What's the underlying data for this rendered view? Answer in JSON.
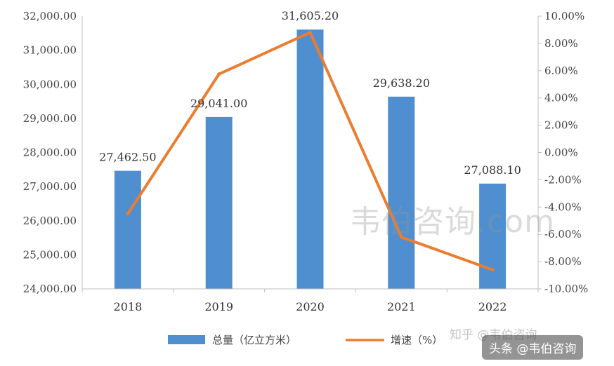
{
  "chart_data": {
    "type": "bar",
    "categories": [
      "2018",
      "2019",
      "2020",
      "2021",
      "2022"
    ],
    "series": [
      {
        "name": "总量（亿立方米）",
        "kind": "bar",
        "axis": "left",
        "values": [
          27462.5,
          29041.0,
          31605.2,
          29638.2,
          27088.1
        ],
        "labels": [
          "27,462.50",
          "29,041.00",
          "31,605.20",
          "29,638.20",
          "27,088.10"
        ],
        "color": "#4f8fd0"
      },
      {
        "name": "增速（%）",
        "kind": "line",
        "axis": "right",
        "values": [
          -4.5,
          5.75,
          8.8,
          -6.2,
          -8.6
        ],
        "color": "#ec7c30"
      }
    ],
    "left_axis": {
      "ylim": [
        24000,
        32000
      ],
      "ticks": [
        "24,000.00",
        "25,000.00",
        "26,000.00",
        "27,000.00",
        "28,000.00",
        "29,000.00",
        "30,000.00",
        "31,000.00",
        "32,000.00"
      ]
    },
    "right_axis": {
      "ylim": [
        -10,
        10
      ],
      "ticks": [
        "-10.00%",
        "-8.00%",
        "-6.00%",
        "-4.00%",
        "-2.00%",
        "0.00%",
        "2.00%",
        "4.00%",
        "6.00%",
        "8.00%",
        "10.00%"
      ]
    },
    "grid": false,
    "legend": "bottom"
  },
  "watermarks": {
    "main": "韦伯咨询.com",
    "zhihu": "知乎 @韦伯咨询",
    "badge": "头条 @韦伯咨询"
  }
}
